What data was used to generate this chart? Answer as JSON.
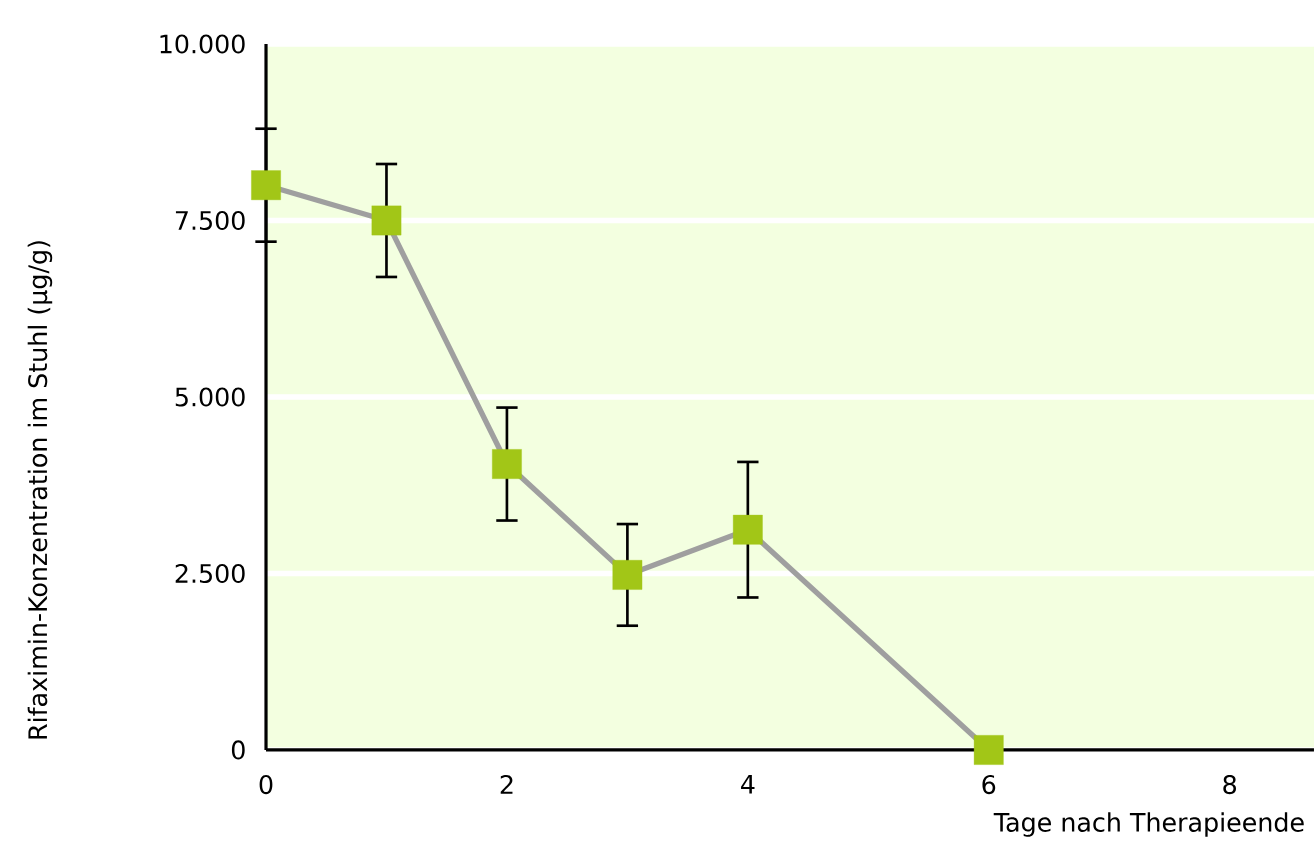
{
  "chart_data": {
    "type": "line",
    "xlabel": "Tage nach Therapieende",
    "ylabel": "Rifaximin-Konzentration im Stuhl (µg/g)",
    "series": [
      {
        "color": "#a2c617",
        "x": [
          0,
          1,
          2,
          3,
          4,
          6
        ],
        "values": [
          8000,
          7500,
          4050,
          2480,
          3120,
          0
        ],
        "errors": [
          800,
          800,
          800,
          720,
          960,
          null
        ]
      }
    ],
    "xlim": [
      0,
      8.7
    ],
    "xticks": [
      0,
      2,
      4,
      6,
      8
    ],
    "ylim": [
      0,
      10000
    ],
    "yticks": [
      {
        "value": 0,
        "label": "0"
      },
      {
        "value": 2500,
        "label": "2.500"
      },
      {
        "value": 5000,
        "label": "5.000"
      },
      {
        "value": 7500,
        "label": "7.500"
      },
      {
        "value": 10000,
        "label": "10.000"
      }
    ],
    "grid": "y",
    "marker": "square",
    "line_style": "solid"
  }
}
